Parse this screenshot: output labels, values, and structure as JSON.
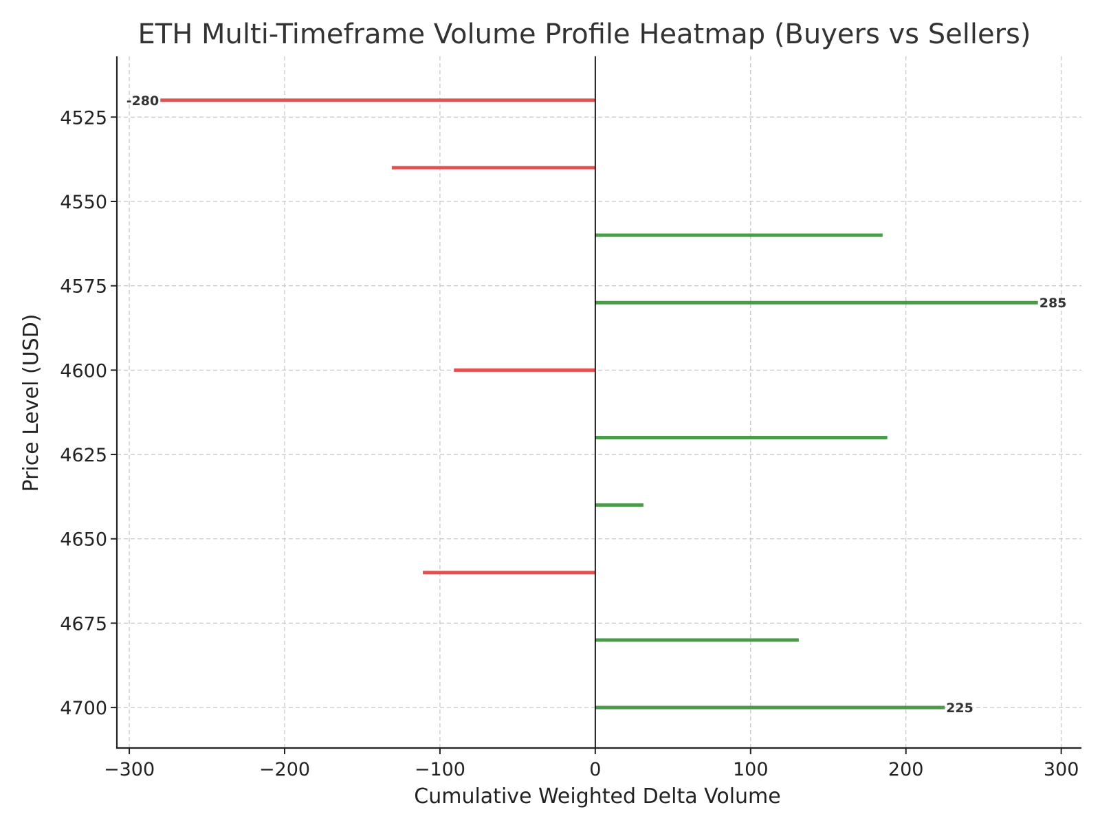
{
  "chart_data": {
    "type": "bar",
    "orientation": "horizontal",
    "title": "ETH Multi-Timeframe Volume Profile Heatmap (Buyers vs Sellers)",
    "xlabel": "Cumulative Weighted Delta Volume",
    "ylabel": "Price Level (USD)",
    "xlim": [
      -308,
      313
    ],
    "ylim": [
      4712,
      4507
    ],
    "y_inverted": true,
    "x_ticks": [
      -300,
      -200,
      -100,
      0,
      100,
      200,
      300
    ],
    "x_tick_labels": [
      "−300",
      "−200",
      "−100",
      "0",
      "100",
      "200",
      "300"
    ],
    "y_ticks": [
      4525,
      4550,
      4575,
      4600,
      4625,
      4650,
      4675,
      4700
    ],
    "y_tick_labels": [
      "4525",
      "4550",
      "4575",
      "4600",
      "4625",
      "4650",
      "4675",
      "4700"
    ],
    "grid": true,
    "colors": {
      "buyers": "#4a9a4a",
      "sellers": "#e05252"
    },
    "price_levels": [
      4520,
      4540,
      4560,
      4580,
      4600,
      4620,
      4640,
      4660,
      4680,
      4700
    ],
    "values": [
      -280,
      -131,
      185,
      285,
      -91,
      188,
      31,
      -111,
      131,
      225
    ],
    "data_labels": [
      {
        "index": 0,
        "text": "-280"
      },
      {
        "index": 3,
        "text": "285"
      },
      {
        "index": 9,
        "text": "225"
      }
    ]
  }
}
